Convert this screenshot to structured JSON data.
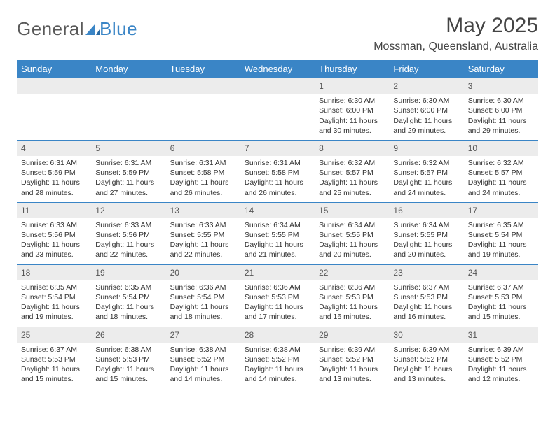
{
  "logo": {
    "part1": "General",
    "part2": "Blue"
  },
  "title": "May 2025",
  "location": "Mossman, Queensland, Australia",
  "colors": {
    "header_bg": "#3a85c6",
    "header_text": "#ffffff",
    "daynum_bg": "#ececec",
    "border": "#3a85c6",
    "body_text": "#333333",
    "logo_gray": "#5a5a5a",
    "logo_blue": "#3a85c6"
  },
  "day_headers": [
    "Sunday",
    "Monday",
    "Tuesday",
    "Wednesday",
    "Thursday",
    "Friday",
    "Saturday"
  ],
  "weeks": [
    {
      "nums": [
        "",
        "",
        "",
        "",
        "1",
        "2",
        "3"
      ],
      "cells": [
        null,
        null,
        null,
        null,
        {
          "sunrise": "Sunrise: 6:30 AM",
          "sunset": "Sunset: 6:00 PM",
          "day1": "Daylight: 11 hours",
          "day2": "and 30 minutes."
        },
        {
          "sunrise": "Sunrise: 6:30 AM",
          "sunset": "Sunset: 6:00 PM",
          "day1": "Daylight: 11 hours",
          "day2": "and 29 minutes."
        },
        {
          "sunrise": "Sunrise: 6:30 AM",
          "sunset": "Sunset: 6:00 PM",
          "day1": "Daylight: 11 hours",
          "day2": "and 29 minutes."
        }
      ]
    },
    {
      "nums": [
        "4",
        "5",
        "6",
        "7",
        "8",
        "9",
        "10"
      ],
      "cells": [
        {
          "sunrise": "Sunrise: 6:31 AM",
          "sunset": "Sunset: 5:59 PM",
          "day1": "Daylight: 11 hours",
          "day2": "and 28 minutes."
        },
        {
          "sunrise": "Sunrise: 6:31 AM",
          "sunset": "Sunset: 5:59 PM",
          "day1": "Daylight: 11 hours",
          "day2": "and 27 minutes."
        },
        {
          "sunrise": "Sunrise: 6:31 AM",
          "sunset": "Sunset: 5:58 PM",
          "day1": "Daylight: 11 hours",
          "day2": "and 26 minutes."
        },
        {
          "sunrise": "Sunrise: 6:31 AM",
          "sunset": "Sunset: 5:58 PM",
          "day1": "Daylight: 11 hours",
          "day2": "and 26 minutes."
        },
        {
          "sunrise": "Sunrise: 6:32 AM",
          "sunset": "Sunset: 5:57 PM",
          "day1": "Daylight: 11 hours",
          "day2": "and 25 minutes."
        },
        {
          "sunrise": "Sunrise: 6:32 AM",
          "sunset": "Sunset: 5:57 PM",
          "day1": "Daylight: 11 hours",
          "day2": "and 24 minutes."
        },
        {
          "sunrise": "Sunrise: 6:32 AM",
          "sunset": "Sunset: 5:57 PM",
          "day1": "Daylight: 11 hours",
          "day2": "and 24 minutes."
        }
      ]
    },
    {
      "nums": [
        "11",
        "12",
        "13",
        "14",
        "15",
        "16",
        "17"
      ],
      "cells": [
        {
          "sunrise": "Sunrise: 6:33 AM",
          "sunset": "Sunset: 5:56 PM",
          "day1": "Daylight: 11 hours",
          "day2": "and 23 minutes."
        },
        {
          "sunrise": "Sunrise: 6:33 AM",
          "sunset": "Sunset: 5:56 PM",
          "day1": "Daylight: 11 hours",
          "day2": "and 22 minutes."
        },
        {
          "sunrise": "Sunrise: 6:33 AM",
          "sunset": "Sunset: 5:55 PM",
          "day1": "Daylight: 11 hours",
          "day2": "and 22 minutes."
        },
        {
          "sunrise": "Sunrise: 6:34 AM",
          "sunset": "Sunset: 5:55 PM",
          "day1": "Daylight: 11 hours",
          "day2": "and 21 minutes."
        },
        {
          "sunrise": "Sunrise: 6:34 AM",
          "sunset": "Sunset: 5:55 PM",
          "day1": "Daylight: 11 hours",
          "day2": "and 20 minutes."
        },
        {
          "sunrise": "Sunrise: 6:34 AM",
          "sunset": "Sunset: 5:55 PM",
          "day1": "Daylight: 11 hours",
          "day2": "and 20 minutes."
        },
        {
          "sunrise": "Sunrise: 6:35 AM",
          "sunset": "Sunset: 5:54 PM",
          "day1": "Daylight: 11 hours",
          "day2": "and 19 minutes."
        }
      ]
    },
    {
      "nums": [
        "18",
        "19",
        "20",
        "21",
        "22",
        "23",
        "24"
      ],
      "cells": [
        {
          "sunrise": "Sunrise: 6:35 AM",
          "sunset": "Sunset: 5:54 PM",
          "day1": "Daylight: 11 hours",
          "day2": "and 19 minutes."
        },
        {
          "sunrise": "Sunrise: 6:35 AM",
          "sunset": "Sunset: 5:54 PM",
          "day1": "Daylight: 11 hours",
          "day2": "and 18 minutes."
        },
        {
          "sunrise": "Sunrise: 6:36 AM",
          "sunset": "Sunset: 5:54 PM",
          "day1": "Daylight: 11 hours",
          "day2": "and 18 minutes."
        },
        {
          "sunrise": "Sunrise: 6:36 AM",
          "sunset": "Sunset: 5:53 PM",
          "day1": "Daylight: 11 hours",
          "day2": "and 17 minutes."
        },
        {
          "sunrise": "Sunrise: 6:36 AM",
          "sunset": "Sunset: 5:53 PM",
          "day1": "Daylight: 11 hours",
          "day2": "and 16 minutes."
        },
        {
          "sunrise": "Sunrise: 6:37 AM",
          "sunset": "Sunset: 5:53 PM",
          "day1": "Daylight: 11 hours",
          "day2": "and 16 minutes."
        },
        {
          "sunrise": "Sunrise: 6:37 AM",
          "sunset": "Sunset: 5:53 PM",
          "day1": "Daylight: 11 hours",
          "day2": "and 15 minutes."
        }
      ]
    },
    {
      "nums": [
        "25",
        "26",
        "27",
        "28",
        "29",
        "30",
        "31"
      ],
      "cells": [
        {
          "sunrise": "Sunrise: 6:37 AM",
          "sunset": "Sunset: 5:53 PM",
          "day1": "Daylight: 11 hours",
          "day2": "and 15 minutes."
        },
        {
          "sunrise": "Sunrise: 6:38 AM",
          "sunset": "Sunset: 5:53 PM",
          "day1": "Daylight: 11 hours",
          "day2": "and 15 minutes."
        },
        {
          "sunrise": "Sunrise: 6:38 AM",
          "sunset": "Sunset: 5:52 PM",
          "day1": "Daylight: 11 hours",
          "day2": "and 14 minutes."
        },
        {
          "sunrise": "Sunrise: 6:38 AM",
          "sunset": "Sunset: 5:52 PM",
          "day1": "Daylight: 11 hours",
          "day2": "and 14 minutes."
        },
        {
          "sunrise": "Sunrise: 6:39 AM",
          "sunset": "Sunset: 5:52 PM",
          "day1": "Daylight: 11 hours",
          "day2": "and 13 minutes."
        },
        {
          "sunrise": "Sunrise: 6:39 AM",
          "sunset": "Sunset: 5:52 PM",
          "day1": "Daylight: 11 hours",
          "day2": "and 13 minutes."
        },
        {
          "sunrise": "Sunrise: 6:39 AM",
          "sunset": "Sunset: 5:52 PM",
          "day1": "Daylight: 11 hours",
          "day2": "and 12 minutes."
        }
      ]
    }
  ]
}
